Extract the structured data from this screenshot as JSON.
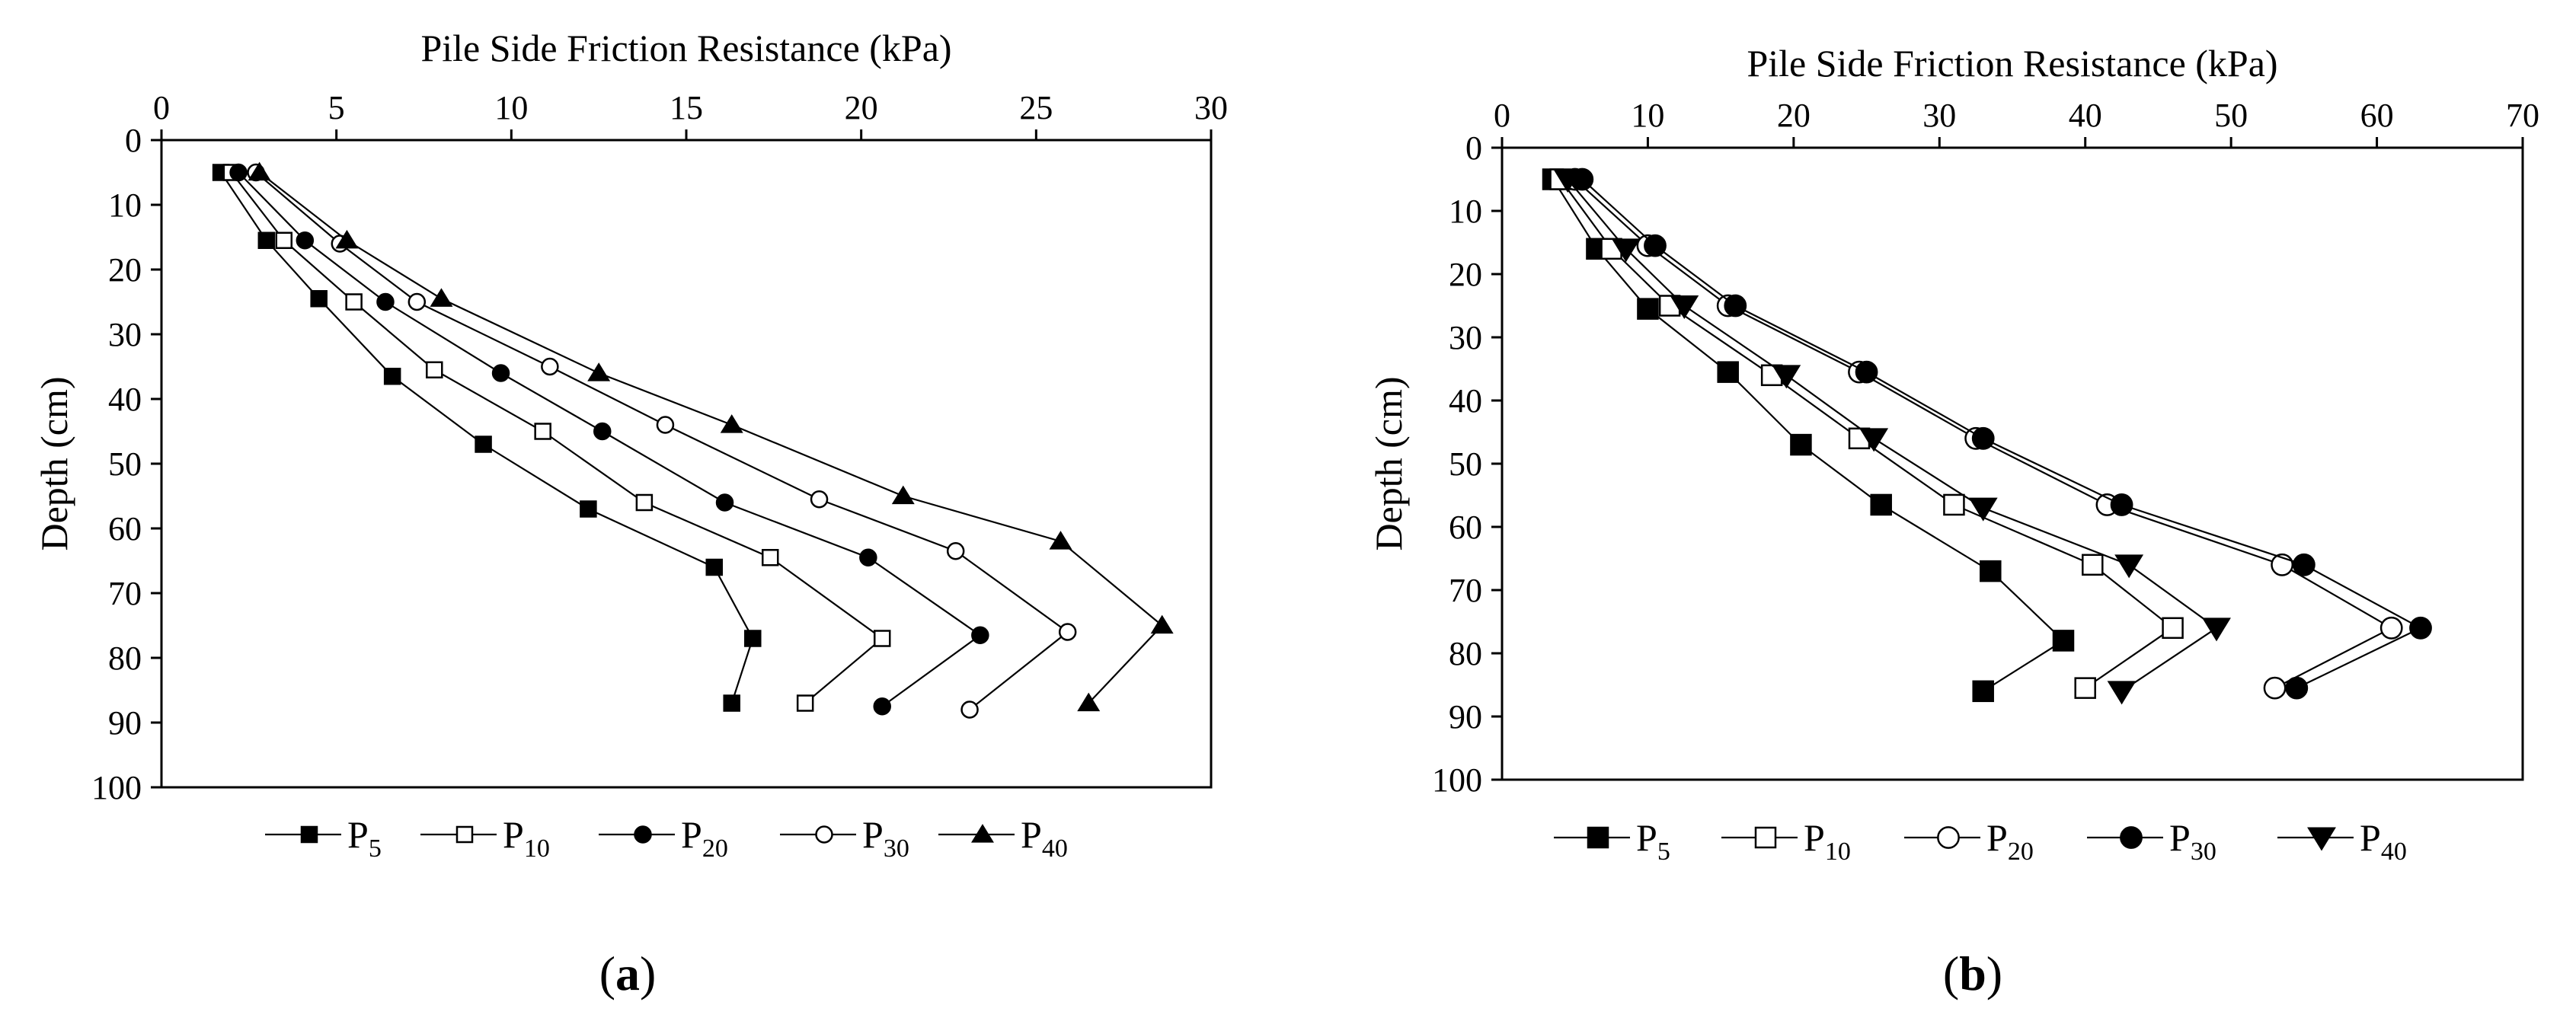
{
  "chart_data": [
    {
      "type": "line",
      "panel_label": "a",
      "xlabel": "Pile Side Friction Resistance (kPa)",
      "ylabel": "Depth (cm)",
      "xlim": [
        0,
        30
      ],
      "ylim": [
        0,
        100
      ],
      "xticks": [
        0,
        5,
        10,
        15,
        20,
        25,
        30
      ],
      "yticks": [
        0,
        10,
        20,
        30,
        40,
        50,
        60,
        70,
        80,
        90,
        100
      ],
      "x_axis_position": "top",
      "y_axis_inverted": true,
      "legend_position": "bottom",
      "series": [
        {
          "name": "P",
          "sub": "5",
          "marker": "square-filled",
          "points": [
            [
              1.7,
              5
            ],
            [
              3.0,
              15.5
            ],
            [
              4.5,
              24.5
            ],
            [
              6.6,
              36.5
            ],
            [
              9.2,
              47
            ],
            [
              12.2,
              57
            ],
            [
              15.8,
              66
            ],
            [
              16.9,
              77
            ],
            [
              16.3,
              87
            ]
          ]
        },
        {
          "name": "P",
          "sub": "10",
          "marker": "square-open",
          "points": [
            [
              2.0,
              5
            ],
            [
              3.5,
              15.5
            ],
            [
              5.5,
              25
            ],
            [
              7.8,
              35.5
            ],
            [
              10.9,
              45
            ],
            [
              13.8,
              56
            ],
            [
              17.4,
              64.5
            ],
            [
              20.6,
              77
            ],
            [
              18.4,
              87
            ]
          ]
        },
        {
          "name": "P",
          "sub": "20",
          "marker": "circle-filled",
          "points": [
            [
              2.2,
              5
            ],
            [
              4.1,
              15.5
            ],
            [
              6.4,
              25
            ],
            [
              9.7,
              36
            ],
            [
              12.6,
              45
            ],
            [
              16.1,
              56
            ],
            [
              20.2,
              64.5
            ],
            [
              23.4,
              76.5
            ],
            [
              20.6,
              87.5
            ]
          ]
        },
        {
          "name": "P",
          "sub": "30",
          "marker": "circle-open",
          "points": [
            [
              2.7,
              5
            ],
            [
              5.1,
              16
            ],
            [
              7.3,
              25
            ],
            [
              11.1,
              35
            ],
            [
              14.4,
              44
            ],
            [
              18.8,
              55.5
            ],
            [
              22.7,
              63.5
            ],
            [
              25.9,
              76
            ],
            [
              23.1,
              88
            ]
          ]
        },
        {
          "name": "P",
          "sub": "40",
          "marker": "triangle-up-filled",
          "points": [
            [
              2.8,
              5
            ],
            [
              5.3,
              15.5
            ],
            [
              8.0,
              24.5
            ],
            [
              12.5,
              36
            ],
            [
              16.3,
              44
            ],
            [
              21.2,
              55
            ],
            [
              25.7,
              62
            ],
            [
              28.6,
              75
            ],
            [
              26.5,
              87
            ]
          ]
        }
      ]
    },
    {
      "type": "line",
      "panel_label": "b",
      "xlabel": "Pile Side Friction Resistance (kPa)",
      "ylabel": "Depth (cm)",
      "xlim": [
        0,
        70
      ],
      "ylim": [
        0,
        100
      ],
      "xticks": [
        0,
        10,
        20,
        30,
        40,
        50,
        60,
        70
      ],
      "yticks": [
        0,
        10,
        20,
        30,
        40,
        50,
        60,
        70,
        80,
        90,
        100
      ],
      "x_axis_position": "top",
      "y_axis_inverted": true,
      "legend_position": "bottom",
      "series": [
        {
          "name": "P",
          "sub": "5",
          "marker": "square-filled",
          "points": [
            [
              3.5,
              5
            ],
            [
              6.5,
              16
            ],
            [
              10.0,
              25.5
            ],
            [
              15.5,
              35.5
            ],
            [
              20.5,
              47
            ],
            [
              26.0,
              56.5
            ],
            [
              33.5,
              67
            ],
            [
              38.5,
              78
            ],
            [
              33.0,
              86
            ]
          ]
        },
        {
          "name": "P",
          "sub": "10",
          "marker": "square-open",
          "points": [
            [
              4.0,
              5
            ],
            [
              7.5,
              16
            ],
            [
              11.5,
              25
            ],
            [
              18.5,
              36
            ],
            [
              24.5,
              46
            ],
            [
              31.0,
              56.5
            ],
            [
              40.5,
              66
            ],
            [
              46.0,
              76
            ],
            [
              40.0,
              85.5
            ]
          ]
        },
        {
          "name": "P",
          "sub": "20",
          "marker": "circle-open",
          "points": [
            [
              5.0,
              5
            ],
            [
              10.0,
              15.5
            ],
            [
              15.5,
              25
            ],
            [
              24.5,
              35.5
            ],
            [
              32.5,
              46
            ],
            [
              41.5,
              56.5
            ],
            [
              53.5,
              66
            ],
            [
              61.0,
              76
            ],
            [
              53.0,
              85.5
            ]
          ]
        },
        {
          "name": "P",
          "sub": "30",
          "marker": "circle-filled",
          "points": [
            [
              5.5,
              5
            ],
            [
              10.5,
              15.5
            ],
            [
              16.0,
              25
            ],
            [
              25.0,
              35.5
            ],
            [
              33.0,
              46
            ],
            [
              42.5,
              56.5
            ],
            [
              55.0,
              66
            ],
            [
              63.0,
              76
            ],
            [
              54.5,
              85.5
            ]
          ]
        },
        {
          "name": "P",
          "sub": "40",
          "marker": "triangle-down-filled",
          "points": [
            [
              4.5,
              5
            ],
            [
              8.5,
              16
            ],
            [
              12.5,
              25
            ],
            [
              19.5,
              36
            ],
            [
              25.5,
              46
            ],
            [
              33.0,
              57
            ],
            [
              43.0,
              66
            ],
            [
              49.0,
              76
            ],
            [
              42.5,
              86
            ]
          ]
        }
      ]
    }
  ]
}
